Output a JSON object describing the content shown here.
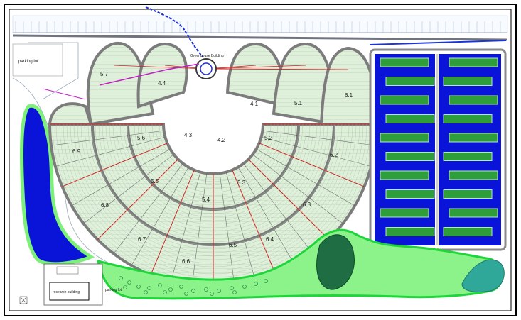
{
  "plots": [
    {
      "id": "p1",
      "label": "5.7"
    },
    {
      "id": "p2",
      "label": "4.4"
    },
    {
      "id": "p3",
      "label": "4.1"
    },
    {
      "id": "p4",
      "label": "5.1"
    },
    {
      "id": "p5",
      "label": "6.1"
    },
    {
      "id": "p6",
      "label": "6.9"
    },
    {
      "id": "p7",
      "label": "5.6"
    },
    {
      "id": "p8",
      "label": "4.3"
    },
    {
      "id": "p9",
      "label": "4.2"
    },
    {
      "id": "p10",
      "label": "5.2"
    },
    {
      "id": "p11",
      "label": "6.2"
    },
    {
      "id": "p12",
      "label": "5.5"
    },
    {
      "id": "p13",
      "label": "5.3"
    },
    {
      "id": "p14",
      "label": "5.4"
    },
    {
      "id": "p15",
      "label": "6.8"
    },
    {
      "id": "p16",
      "label": "6.3"
    },
    {
      "id": "p17",
      "label": "6.7"
    },
    {
      "id": "p18",
      "label": "6.6"
    },
    {
      "id": "p19",
      "label": "6.5"
    },
    {
      "id": "p20",
      "label": "6.4"
    }
  ],
  "labels": {
    "parking_lot_top": "parking lot",
    "parking_lot_bottom": "parking lot",
    "research_building": "research building",
    "center_building": "Greenhouse Building"
  },
  "colors": {
    "plot_fill": "#d9efd4",
    "road": "#8a8a8a",
    "pond_blue": "#0a14d8",
    "bed_green": "#2e9e3a",
    "wetland_light": "#7df07a",
    "wetland_dark": "#1f6e43",
    "pond_teal": "#2fa89a",
    "pipe_red": "#d21e1e"
  }
}
